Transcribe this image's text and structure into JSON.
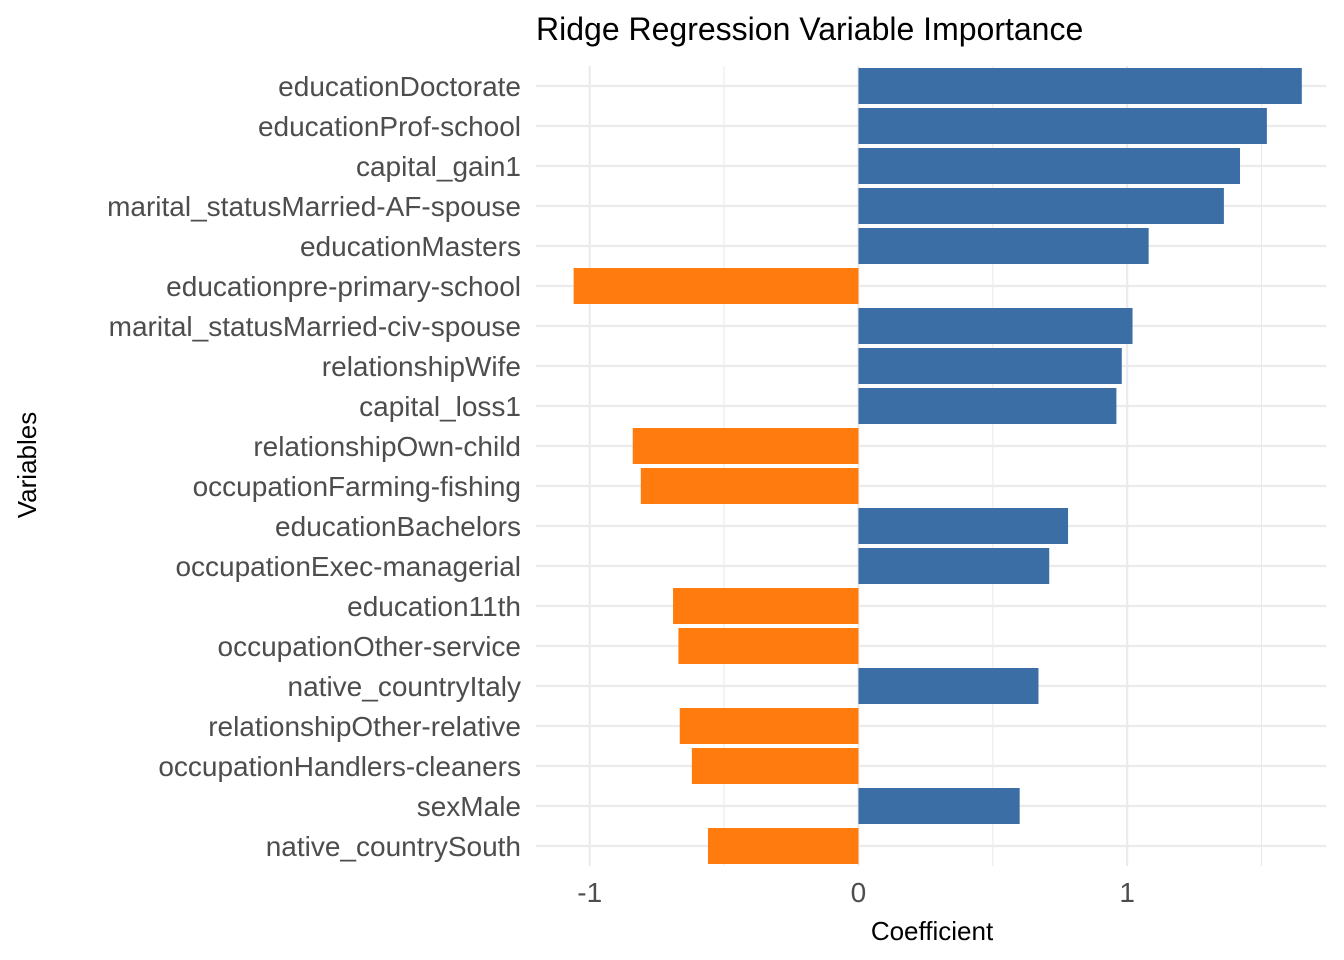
{
  "chart_data": {
    "type": "bar",
    "orientation": "horizontal",
    "title": "Ridge Regression Variable Importance",
    "xlabel": "Coefficient",
    "ylabel": "Variables",
    "xlim": [
      -1.2,
      1.74
    ],
    "x_ticks": [
      -1,
      0,
      1
    ],
    "x_tick_labels": [
      "-1",
      "0",
      "1"
    ],
    "grid": true,
    "legend": "none",
    "colors": {
      "positive": "#3A6EA5",
      "negative": "#FF7B0D",
      "grid": "#EBEBEB",
      "tick_text": "#4D4D4D"
    },
    "categories": [
      "educationDoctorate",
      "educationProf-school",
      "capital_gain1",
      "marital_statusMarried-AF-spouse",
      "educationMasters",
      "educationpre-primary-school",
      "marital_statusMarried-civ-spouse",
      "relationshipWife",
      "capital_loss1",
      "relationshipOwn-child",
      "occupationFarming-fishing",
      "educationBachelors",
      "occupationExec-managerial",
      "education11th",
      "occupationOther-service",
      "native_countryItaly",
      "relationshipOther-relative",
      "occupationHandlers-cleaners",
      "sexMale",
      "native_countrySouth"
    ],
    "values": [
      1.65,
      1.52,
      1.42,
      1.36,
      1.08,
      -1.06,
      1.02,
      0.98,
      0.96,
      -0.84,
      -0.81,
      0.78,
      0.71,
      -0.69,
      -0.67,
      0.67,
      -0.665,
      -0.62,
      0.6,
      -0.56
    ]
  }
}
